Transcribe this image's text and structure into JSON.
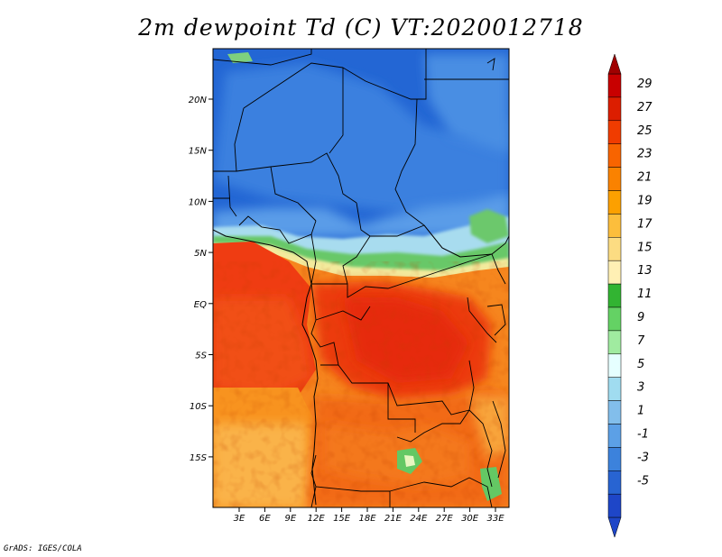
{
  "title": "2m dewpoint Td (C) VT:2020012718",
  "credit": "GrADS: IGES/COLA",
  "lon_ticks": [
    "3E",
    "6E",
    "9E",
    "12E",
    "15E",
    "18E",
    "21E",
    "24E",
    "27E",
    "30E",
    "33E"
  ],
  "lat_ticks": [
    "20N",
    "15N",
    "10N",
    "5N",
    "EQ",
    "5S",
    "10S",
    "15S"
  ],
  "colorbar": {
    "labels": [
      "29",
      "27",
      "25",
      "23",
      "21",
      "19",
      "17",
      "15",
      "13",
      "11",
      "9",
      "7",
      "5",
      "3",
      "1",
      "-1",
      "-3",
      "-5"
    ],
    "colors": [
      "#c80000",
      "#dc1e00",
      "#f03c00",
      "#f86400",
      "#fa8200",
      "#fca000",
      "#fcbe3c",
      "#fcdc82",
      "#fff0b4",
      "#32b432",
      "#64d264",
      "#a0eba0",
      "#e6ffff",
      "#a0dcf0",
      "#82beeb",
      "#5ca0e6",
      "#3c82dc",
      "#2864d2",
      "#1e46c8"
    ],
    "top_color": "#a00000",
    "bottom_color": "#1e46c8"
  }
}
